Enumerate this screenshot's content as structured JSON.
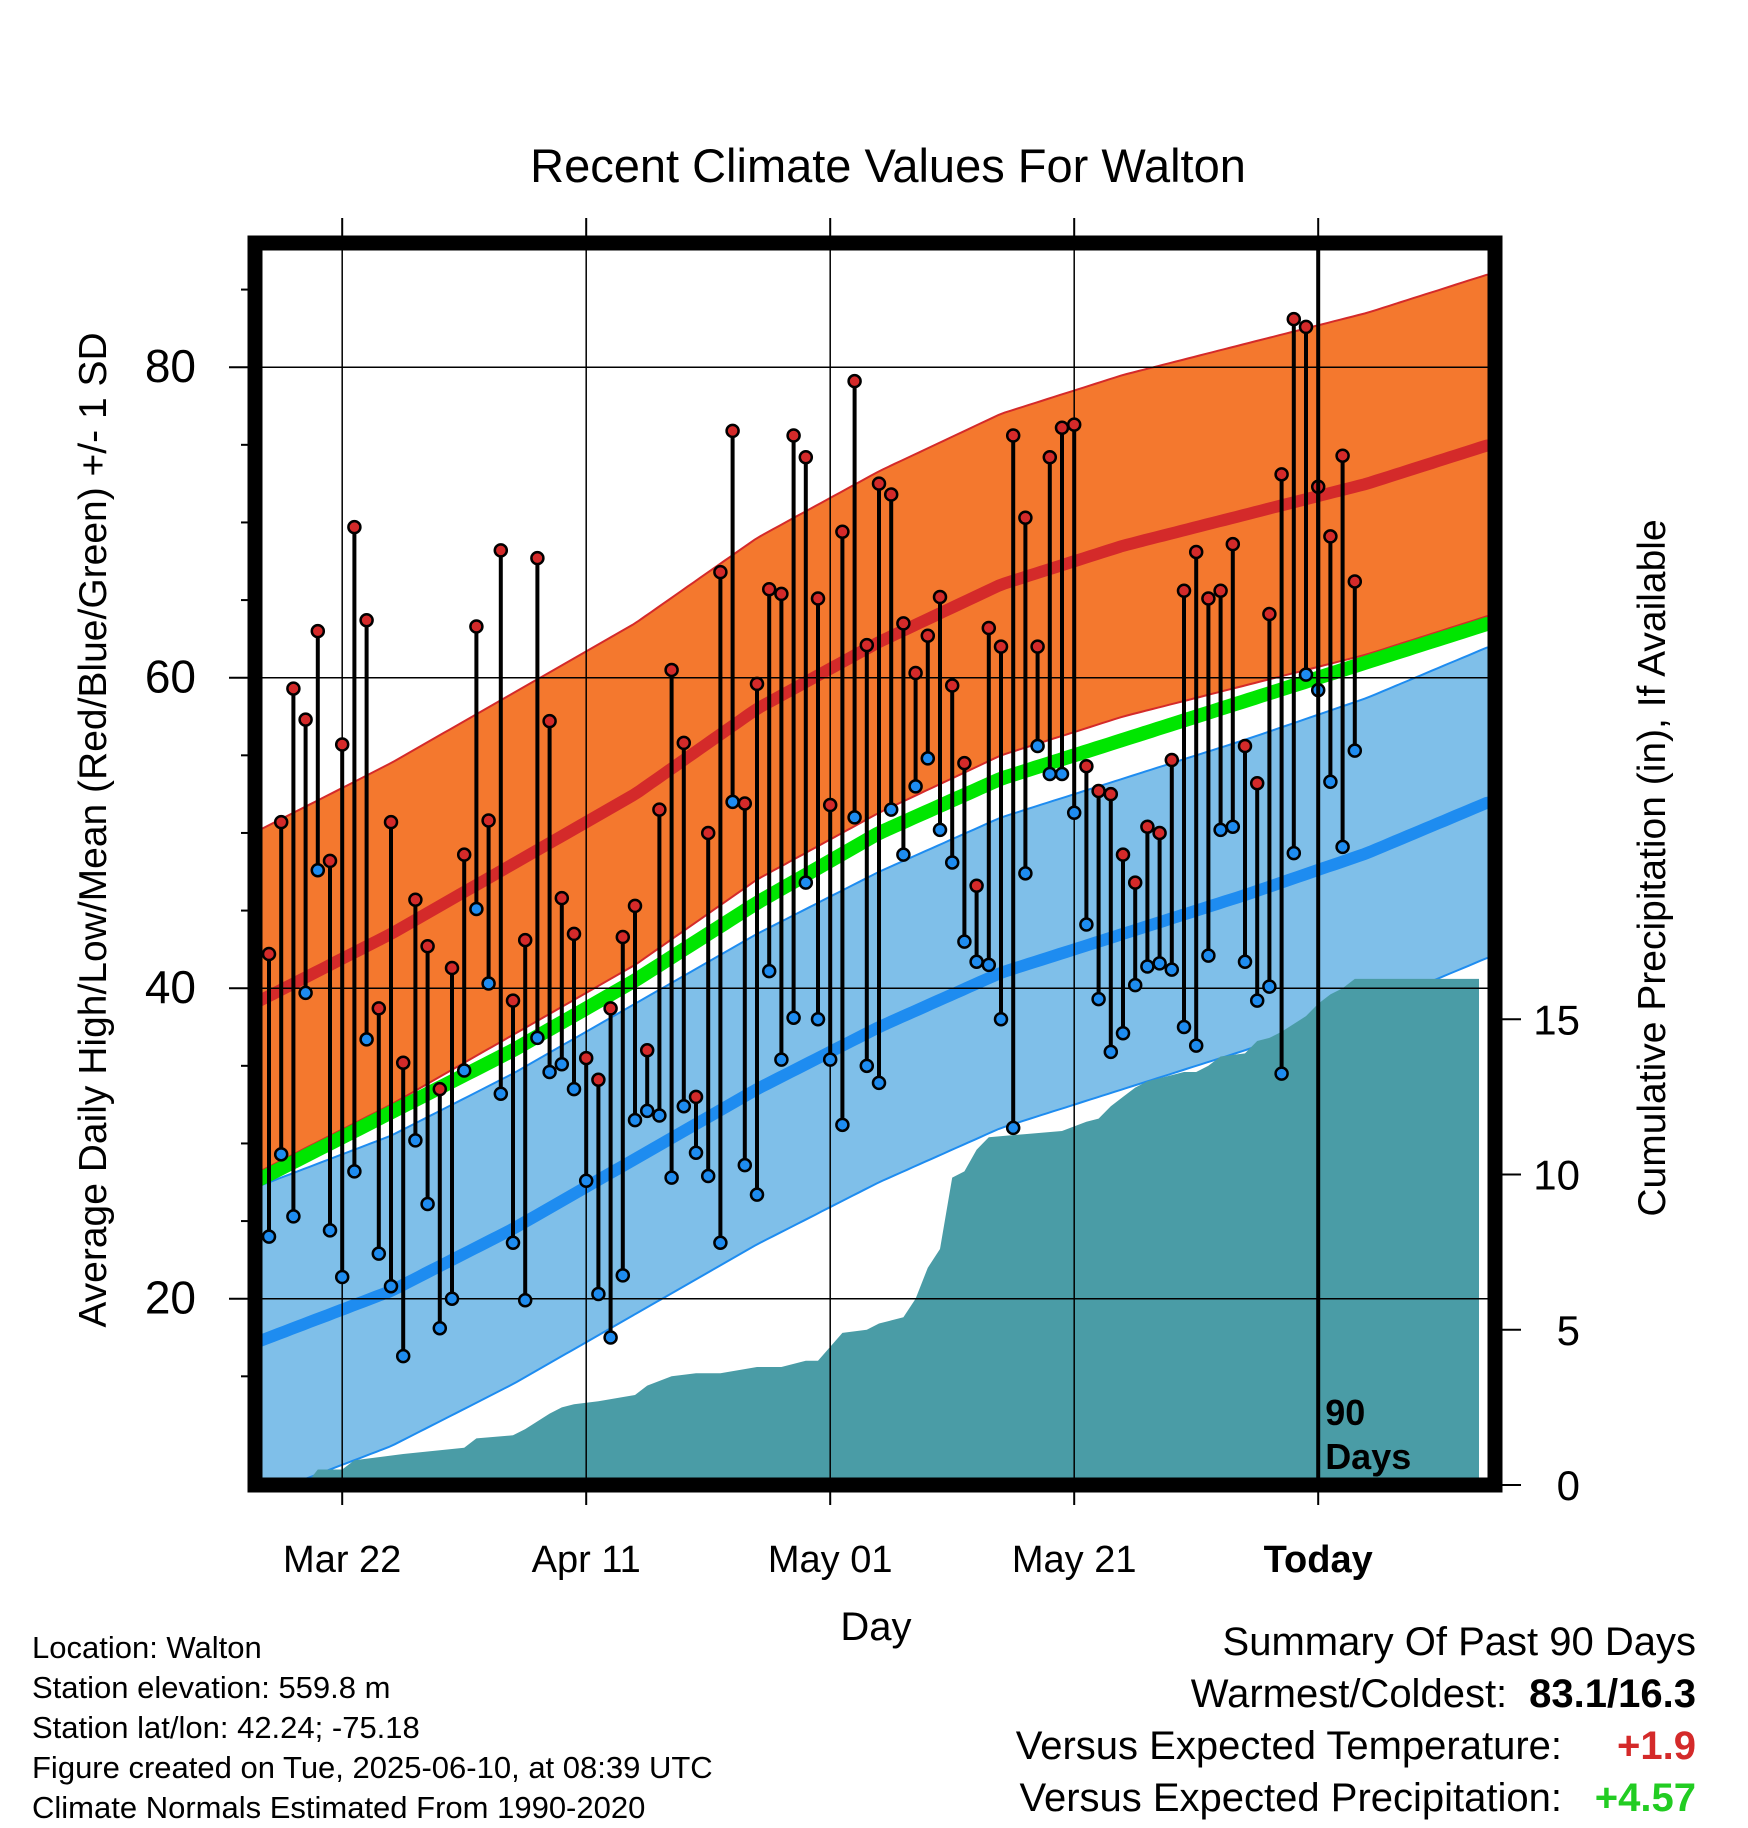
{
  "chart_data": {
    "type": "line",
    "title": "Recent Climate Values For Walton",
    "xlabel": "Day",
    "ylabel": "Average Daily High/Low/Mean (Red/Blue/Green) +/- 1 SD",
    "y2label": "Cumulative Precipitation (in), If Available",
    "ylim": [
      8,
      88
    ],
    "y2lim": [
      0,
      40
    ],
    "x_tick_labels": [
      "Mar 22",
      "Apr 11",
      "May 01",
      "May 21",
      "Today"
    ],
    "y_tick_labels": [
      "20",
      "40",
      "60",
      "80"
    ],
    "y2_tick_labels": [
      "0",
      "5",
      "10",
      "15"
    ],
    "today_marker": "90\nDays",
    "grid": true,
    "colors": {
      "high_band": "#f4782e",
      "high_mean": "#d42a2a",
      "low_band": "#7fbfe9",
      "low_mean": "#1e8cf0",
      "mean": "#00e600",
      "precip": "#4a9ca6",
      "high_point": "#d42a2a",
      "low_point": "#1e8cf0"
    },
    "normals": {
      "days": [
        0,
        10,
        20,
        30,
        40,
        50,
        60,
        70,
        80,
        90,
        100
      ],
      "high_mean": [
        39.5,
        43.5,
        48,
        52.5,
        58,
        62.3,
        66,
        68.5,
        70.5,
        72.5,
        75
      ],
      "high_sd": 11,
      "low_mean": [
        17.5,
        20.5,
        24.5,
        29,
        33.5,
        37.5,
        41,
        43.5,
        46,
        48.7,
        52
      ],
      "low_sd": 10,
      "mean": [
        28,
        32,
        36,
        40.5,
        45.5,
        50,
        53.5,
        56,
        58.5,
        61,
        63.5
      ]
    },
    "daily": {
      "highs": [
        42.2,
        50.7,
        59.3,
        57.3,
        63.0,
        48.2,
        55.7,
        69.7,
        63.7,
        38.7,
        50.7,
        35.2,
        45.7,
        42.7,
        33.5,
        41.3,
        48.6,
        63.3,
        50.8,
        68.2,
        39.2,
        43.1,
        67.7,
        57.2,
        45.8,
        43.5,
        35.5,
        34.1,
        38.7,
        43.3,
        45.3,
        36.0,
        51.5,
        60.5,
        55.8,
        33.0,
        50.0,
        66.8,
        75.9,
        51.9,
        59.6,
        65.7,
        65.4,
        75.6,
        74.2,
        65.1,
        51.8,
        69.4,
        79.1,
        62.1,
        72.5,
        71.8,
        63.5,
        60.3,
        62.7,
        65.2,
        59.5,
        54.5,
        46.6,
        63.2,
        62.0,
        75.6,
        70.3,
        62.0,
        74.2,
        76.1,
        76.3,
        54.3,
        52.7,
        52.5,
        48.6,
        46.8,
        50.4,
        50.0,
        54.7,
        65.6,
        68.1,
        65.1,
        65.6,
        68.6,
        55.6,
        53.2,
        64.1,
        73.1,
        83.1,
        82.6,
        72.3,
        69.1,
        74.3,
        66.2
      ],
      "lows": [
        24.0,
        29.3,
        25.3,
        39.7,
        47.6,
        24.4,
        21.4,
        28.2,
        36.7,
        22.9,
        20.8,
        16.3,
        30.2,
        26.1,
        18.1,
        20.0,
        34.7,
        45.1,
        40.3,
        33.2,
        23.6,
        19.9,
        36.8,
        34.6,
        35.1,
        33.5,
        27.6,
        20.3,
        17.5,
        21.5,
        31.5,
        32.1,
        31.8,
        27.8,
        32.4,
        29.4,
        27.9,
        23.6,
        52.0,
        28.6,
        26.7,
        41.1,
        35.4,
        38.1,
        46.8,
        38.0,
        35.4,
        31.2,
        51.0,
        35.0,
        33.9,
        51.5,
        48.6,
        53.0,
        54.8,
        50.2,
        48.1,
        43.0,
        41.7,
        41.5,
        38.0,
        31.0,
        47.4,
        55.6,
        53.8,
        53.8,
        51.3,
        44.1,
        39.3,
        35.9,
        37.1,
        40.2,
        41.4,
        41.6,
        41.2,
        37.5,
        36.3,
        42.1,
        50.2,
        50.4,
        41.7,
        39.2,
        40.1,
        34.5,
        48.7,
        60.2,
        59.2,
        53.3,
        49.1,
        55.3
      ]
    },
    "precip_cumulative": {
      "days": [
        0,
        3,
        4,
        6,
        7,
        11,
        16,
        17,
        20,
        21,
        23,
        24,
        25,
        27,
        30,
        31,
        33,
        35,
        37,
        40,
        42,
        44,
        45,
        47,
        49,
        50,
        51,
        52,
        53,
        54,
        55,
        56,
        57,
        58,
        59,
        62,
        65,
        67,
        68,
        69,
        70,
        71,
        72,
        74,
        75,
        76,
        77,
        78,
        80,
        81,
        82,
        83,
        85,
        86,
        87,
        88,
        89,
        90
      ],
      "values": [
        0,
        0,
        0.5,
        0.5,
        0.8,
        1.0,
        1.2,
        1.5,
        1.6,
        1.8,
        2.3,
        2.5,
        2.6,
        2.7,
        2.9,
        3.2,
        3.5,
        3.6,
        3.6,
        3.8,
        3.8,
        4.0,
        4.0,
        4.9,
        5.0,
        5.2,
        5.3,
        5.4,
        6.0,
        7.0,
        7.6,
        9.9,
        10.1,
        10.8,
        11.2,
        11.3,
        11.4,
        11.7,
        11.8,
        12.2,
        12.5,
        12.8,
        13.0,
        13.2,
        13.3,
        13.3,
        13.5,
        13.8,
        13.9,
        14.3,
        14.4,
        14.6,
        15.1,
        15.5,
        15.8,
        16.0,
        16.3,
        16.3
      ]
    }
  },
  "info": {
    "location": "Location: Walton",
    "elevation": "Station elevation: 559.8 m",
    "latlon": "Station lat/lon: 42.24; -75.18",
    "created": "Figure created on Tue, 2025-06-10, at 08:39 UTC",
    "normals": "Climate Normals Estimated From 1990-2020"
  },
  "summary": {
    "title": "Summary Of Past 90 Days",
    "warmest_label": "Warmest/Coldest:",
    "warmest_value": "83.1/16.3",
    "temp_label": "Versus Expected Temperature:",
    "temp_value": "+1.9",
    "temp_color": "#d42a2a",
    "precip_label": "Versus Expected Precipitation:",
    "precip_value": "+4.57",
    "precip_color": "#22cc22"
  }
}
